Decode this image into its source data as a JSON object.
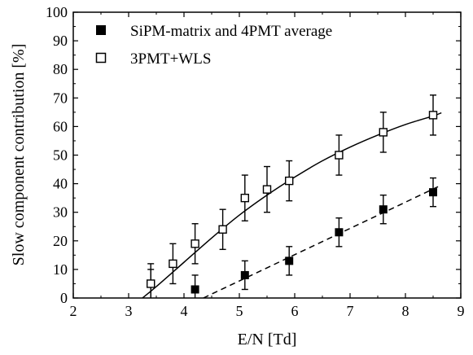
{
  "chart_data": {
    "type": "scatter",
    "xlabel": "E/N [Td]",
    "ylabel": "Slow component contribution [%]",
    "xlim": [
      2,
      9
    ],
    "ylim": [
      0,
      100
    ],
    "xticks": [
      2,
      3,
      4,
      5,
      6,
      7,
      8,
      9
    ],
    "yticks": [
      0,
      10,
      20,
      30,
      40,
      50,
      60,
      70,
      80,
      90,
      100
    ],
    "grid": false,
    "legend_position": "top-left",
    "series": [
      {
        "name": "SiPM-matrix and 4PMT average",
        "marker": "filled-square",
        "x": [
          3.4,
          4.2,
          5.1,
          5.9,
          6.8,
          7.6,
          8.5
        ],
        "y": [
          5,
          3,
          8,
          13,
          23,
          31,
          37
        ],
        "err": [
          5,
          5,
          5,
          5,
          5,
          5,
          5
        ],
        "fit": {
          "style": "dashed",
          "x": [
            4.35,
            8.65
          ],
          "y": [
            0,
            39.5
          ]
        }
      },
      {
        "name": "3PMT+WLS",
        "marker": "open-square",
        "x": [
          3.4,
          3.8,
          4.2,
          4.7,
          5.1,
          5.5,
          5.9,
          6.8,
          7.6,
          8.5
        ],
        "y": [
          5,
          12,
          19,
          24,
          35,
          38,
          41,
          50,
          58,
          64
        ],
        "err": [
          7,
          7,
          7,
          7,
          8,
          8,
          7,
          7,
          7,
          7
        ],
        "fit": {
          "style": "solid",
          "x": [
            3.25,
            3.5,
            4.0,
            4.5,
            5.0,
            5.5,
            6.0,
            6.5,
            7.0,
            7.5,
            8.0,
            8.5,
            8.65
          ],
          "y": [
            0,
            4,
            12.5,
            21,
            29,
            36,
            42.3,
            48,
            52.8,
            57,
            60.7,
            63.7,
            64.8
          ]
        }
      }
    ]
  }
}
